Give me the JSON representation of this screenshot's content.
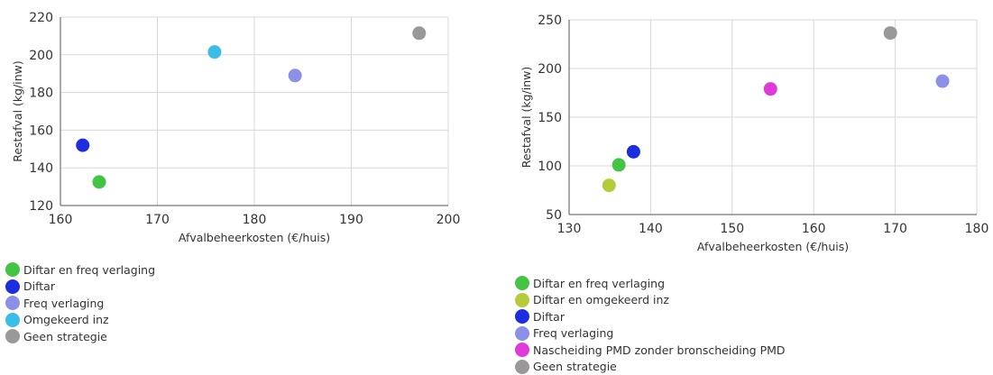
{
  "chart_data": [
    {
      "type": "scatter",
      "title": "",
      "xlabel": "Afvalbeheerkosten (€/huis)",
      "ylabel": "Restafval (kg/inw)",
      "xlim": [
        160,
        200
      ],
      "ylim": [
        120,
        220
      ],
      "xticks": [
        160,
        170,
        180,
        190,
        200
      ],
      "yticks": [
        120,
        140,
        160,
        180,
        200,
        220
      ],
      "grid": true,
      "legend_position": "bottom-left",
      "series": [
        {
          "name": "Diftar en freq verlaging",
          "color": "#44c444",
          "points": [
            {
              "x": 164.0,
              "y": 132.5
            }
          ]
        },
        {
          "name": "Diftar",
          "color": "#1d2ee0",
          "points": [
            {
              "x": 162.3,
              "y": 152.0
            }
          ]
        },
        {
          "name": "Freq verlaging",
          "color": "#8c90e6",
          "points": [
            {
              "x": 184.2,
              "y": 189.0
            }
          ]
        },
        {
          "name": "Omgekeerd inz",
          "color": "#3bbde6",
          "points": [
            {
              "x": 175.9,
              "y": 201.5
            }
          ]
        },
        {
          "name": "Geen strategie",
          "color": "#9a9898",
          "points": [
            {
              "x": 197.0,
              "y": 211.5
            }
          ]
        }
      ]
    },
    {
      "type": "scatter",
      "title": "",
      "xlabel": "Afvalbeheerkosten (€/huis)",
      "ylabel": "Restafval (kg/inw)",
      "xlim": [
        130,
        180
      ],
      "ylim": [
        50,
        250
      ],
      "xticks": [
        130,
        140,
        150,
        160,
        170,
        180
      ],
      "yticks": [
        50,
        100,
        150,
        200,
        250
      ],
      "grid": true,
      "legend_position": "bottom-left",
      "series": [
        {
          "name": "Diftar en freq verlaging",
          "color": "#44c444",
          "points": [
            {
              "x": 136.1,
              "y": 101.0
            }
          ]
        },
        {
          "name": "Diftar en omgekeerd inz",
          "color": "#b5cc3a",
          "points": [
            {
              "x": 134.9,
              "y": 80.0
            }
          ]
        },
        {
          "name": "Diftar",
          "color": "#1d2ee0",
          "points": [
            {
              "x": 137.9,
              "y": 114.5
            }
          ]
        },
        {
          "name": "Freq verlaging",
          "color": "#8c90e6",
          "points": [
            {
              "x": 175.8,
              "y": 187.0
            }
          ]
        },
        {
          "name": "Nascheiding PMD zonder bronscheiding PMD",
          "color": "#e03adb",
          "points": [
            {
              "x": 154.7,
              "y": 179.0
            }
          ]
        },
        {
          "name": "Geen strategie",
          "color": "#9a9898",
          "points": [
            {
              "x": 169.4,
              "y": 236.5
            }
          ]
        }
      ]
    }
  ]
}
